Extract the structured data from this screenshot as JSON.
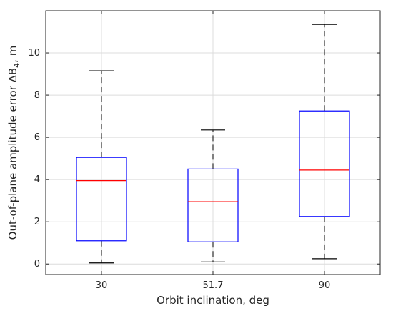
{
  "chart_data": {
    "type": "box",
    "categories": [
      "30",
      "51.7",
      "90"
    ],
    "xlabel": "Orbit inclination, deg",
    "ylabel_parts": {
      "main": "Out-of-plane amplitude error  ΔB",
      "subscript": "4",
      "suffix": ", m"
    },
    "ylim": [
      -0.5,
      12
    ],
    "yticks": [
      0,
      2,
      4,
      6,
      8,
      10
    ],
    "ytick_labels": [
      "0",
      "2",
      "4",
      "6",
      "8",
      "10"
    ],
    "grid": true,
    "boxes": [
      {
        "category": "30",
        "whisker_low": 0.05,
        "q1": 1.1,
        "median": 3.95,
        "q3": 5.05,
        "whisker_high": 9.15
      },
      {
        "category": "51.7",
        "whisker_low": 0.1,
        "q1": 1.05,
        "median": 2.95,
        "q3": 4.5,
        "whisker_high": 6.35
      },
      {
        "category": "90",
        "whisker_low": 0.25,
        "q1": 2.25,
        "median": 4.45,
        "q3": 7.25,
        "whisker_high": 11.35
      }
    ],
    "colors": {
      "box": "#0000ff",
      "median": "#ff0000",
      "whisker": "#000000",
      "grid": "#dcdcdc",
      "axis": "#262626"
    }
  }
}
